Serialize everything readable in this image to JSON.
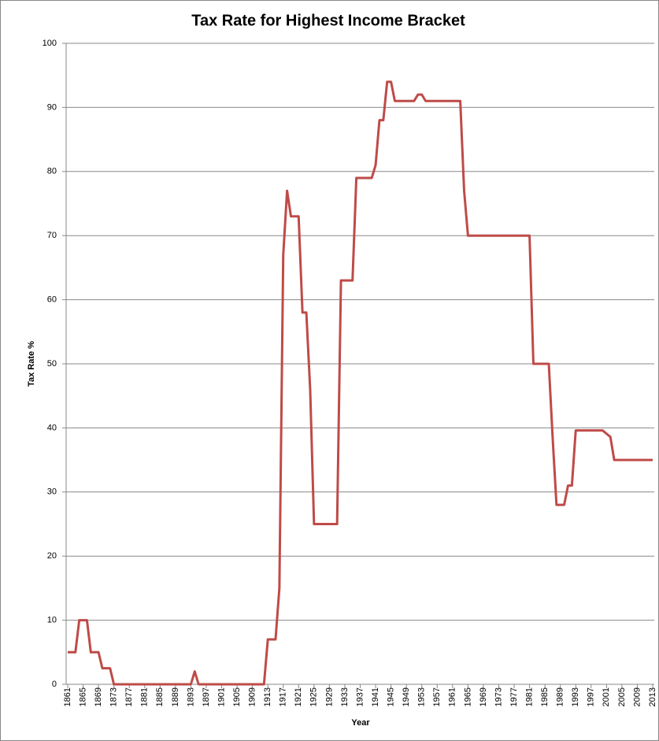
{
  "chart_data": {
    "type": "line",
    "title": "Tax Rate for Highest Income Bracket",
    "x_label": "Year",
    "y_label": "Tax Rate %",
    "x": [
      1861,
      1862,
      1863,
      1864,
      1865,
      1866,
      1867,
      1868,
      1869,
      1870,
      1871,
      1872,
      1873,
      1874,
      1875,
      1876,
      1877,
      1878,
      1879,
      1880,
      1881,
      1882,
      1883,
      1884,
      1885,
      1886,
      1887,
      1888,
      1889,
      1890,
      1891,
      1892,
      1893,
      1894,
      1895,
      1896,
      1897,
      1898,
      1899,
      1900,
      1901,
      1902,
      1903,
      1904,
      1905,
      1906,
      1907,
      1908,
      1909,
      1910,
      1911,
      1912,
      1913,
      1914,
      1915,
      1916,
      1917,
      1918,
      1919,
      1920,
      1921,
      1922,
      1923,
      1924,
      1925,
      1926,
      1927,
      1928,
      1929,
      1930,
      1931,
      1932,
      1933,
      1934,
      1935,
      1936,
      1937,
      1938,
      1939,
      1940,
      1941,
      1942,
      1943,
      1944,
      1945,
      1946,
      1947,
      1948,
      1949,
      1950,
      1951,
      1952,
      1953,
      1954,
      1955,
      1956,
      1957,
      1958,
      1959,
      1960,
      1961,
      1962,
      1963,
      1964,
      1965,
      1966,
      1967,
      1968,
      1969,
      1970,
      1971,
      1972,
      1973,
      1974,
      1975,
      1976,
      1977,
      1978,
      1979,
      1980,
      1981,
      1982,
      1983,
      1984,
      1985,
      1986,
      1987,
      1988,
      1989,
      1990,
      1991,
      1992,
      1993,
      1994,
      1995,
      1996,
      1997,
      1998,
      1999,
      2000,
      2001,
      2002,
      2003,
      2004,
      2005,
      2006,
      2007,
      2008,
      2009,
      2010,
      2011,
      2012,
      2013
    ],
    "values": [
      5,
      5,
      5,
      10,
      10,
      10,
      5,
      5,
      5,
      2.5,
      2.5,
      2.5,
      0,
      0,
      0,
      0,
      0,
      0,
      0,
      0,
      0,
      0,
      0,
      0,
      0,
      0,
      0,
      0,
      0,
      0,
      0,
      0,
      0,
      2,
      0,
      0,
      0,
      0,
      0,
      0,
      0,
      0,
      0,
      0,
      0,
      0,
      0,
      0,
      0,
      0,
      0,
      0,
      7,
      7,
      7,
      15,
      67,
      77,
      73,
      73,
      73,
      58,
      58,
      46,
      25,
      25,
      25,
      25,
      25,
      25,
      25,
      63,
      63,
      63,
      63,
      79,
      79,
      79,
      79,
      79,
      81,
      88,
      88,
      94,
      94,
      91,
      91,
      91,
      91,
      91,
      91,
      92,
      92,
      91,
      91,
      91,
      91,
      91,
      91,
      91,
      91,
      91,
      91,
      77,
      70,
      70,
      70,
      70,
      70,
      70,
      70,
      70,
      70,
      70,
      70,
      70,
      70,
      70,
      70,
      70,
      70,
      50,
      50,
      50,
      50,
      50,
      38.5,
      28,
      28,
      28,
      31,
      31,
      39.6,
      39.6,
      39.6,
      39.6,
      39.6,
      39.6,
      39.6,
      39.6,
      39.1,
      38.6,
      35,
      35,
      35,
      35,
      35,
      35,
      35,
      35,
      35,
      35,
      35
    ],
    "color": "#be4b48",
    "xlim": [
      1861,
      2013
    ],
    "xticks": [
      1861,
      1865,
      1869,
      1873,
      1877,
      1881,
      1885,
      1889,
      1893,
      1897,
      1901,
      1905,
      1909,
      1913,
      1917,
      1921,
      1925,
      1929,
      1933,
      1937,
      1941,
      1945,
      1949,
      1953,
      1957,
      1961,
      1965,
      1969,
      1973,
      1977,
      1981,
      1985,
      1989,
      1993,
      1997,
      2001,
      2005,
      2009,
      2013
    ],
    "ylim": [
      0,
      100
    ],
    "yticks": [
      0,
      10,
      20,
      30,
      40,
      50,
      60,
      70,
      80,
      90,
      100
    ],
    "grid": true
  }
}
